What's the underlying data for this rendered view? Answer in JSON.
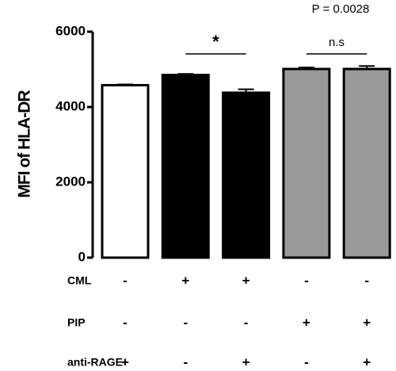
{
  "chart_data": {
    "type": "bar",
    "y_label": "MFI of HLA-DR",
    "p_value_text": "P = 0.0028",
    "categories": [
      null,
      null,
      null,
      null,
      null
    ],
    "values": [
      4580,
      4850,
      4380,
      5010,
      5010
    ],
    "errors": [
      20,
      30,
      90,
      40,
      80
    ],
    "colors": [
      "#ffffff",
      "#000000",
      "#000000",
      "#999999",
      "#999999"
    ],
    "ylim": [
      0,
      6000
    ],
    "yticks": [
      0,
      2000,
      4000,
      6000
    ],
    "brackets": [
      "*",
      "n.s"
    ],
    "conditions": [
      {
        "label": "CML",
        "signs": [
          "-",
          "+",
          "+",
          "-",
          "-"
        ]
      },
      {
        "label": "PIP",
        "signs": [
          "-",
          "-",
          "-",
          "+",
          "+"
        ]
      },
      {
        "label": "anti-RAGE",
        "signs": [
          "+",
          "-",
          "+",
          "-",
          "+"
        ]
      }
    ]
  }
}
